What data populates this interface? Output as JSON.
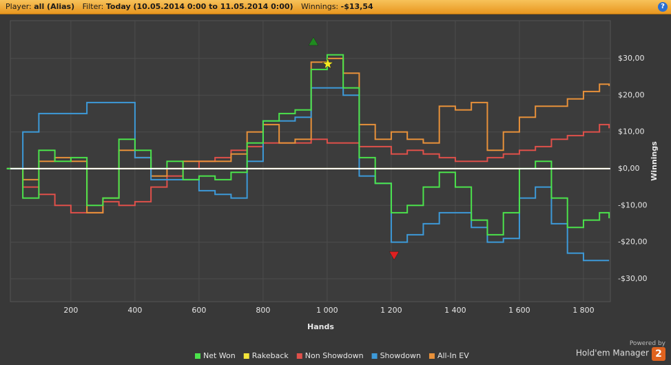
{
  "header": {
    "player_label": "Player:",
    "player": "all (Alias)",
    "filter_label": "Filter:",
    "filter": "Today (10.05.2014 0:00 to 11.05.2014 0:00)",
    "winnings_label": "Winnings:",
    "winnings": "-$13,54",
    "help": "?"
  },
  "branding": {
    "powered": "Powered by",
    "product": "Hold'em Manager",
    "version": "2"
  },
  "chart_data": {
    "type": "line",
    "step": true,
    "x_label": "Hands",
    "y_label": "Winnings",
    "x": [
      0,
      50,
      100,
      150,
      200,
      250,
      300,
      350,
      400,
      450,
      500,
      550,
      600,
      650,
      700,
      750,
      800,
      850,
      900,
      950,
      1000,
      1050,
      1100,
      1150,
      1200,
      1250,
      1300,
      1350,
      1400,
      1450,
      1500,
      1550,
      1600,
      1650,
      1700,
      1750,
      1800,
      1850,
      1880
    ],
    "series": [
      {
        "name": "Net Won",
        "color": "#4be34b",
        "values": [
          0,
          -8,
          5,
          2,
          3,
          -10,
          -8,
          8,
          5,
          0,
          2,
          -3,
          -2,
          -3,
          -1,
          7,
          13,
          15,
          16,
          27,
          31,
          22,
          3,
          -4,
          -12,
          -10,
          -5,
          -1,
          -5,
          -14,
          -18,
          -12,
          0,
          2,
          -8,
          -16,
          -14,
          -12,
          -13.5
        ]
      },
      {
        "name": "Rakeback",
        "color": "#f2e43a",
        "values": [
          0,
          0,
          0,
          0,
          0,
          0,
          0,
          0,
          0,
          0,
          0,
          0,
          0,
          0,
          0,
          0,
          0,
          0,
          0,
          0,
          0,
          0,
          0,
          0,
          0,
          0,
          0,
          0,
          0,
          0,
          0,
          0,
          0,
          0,
          0,
          0,
          0,
          0,
          0
        ]
      },
      {
        "name": "Non Showdown",
        "color": "#e0504a",
        "values": [
          0,
          -5,
          -7,
          -10,
          -12,
          -12,
          -9,
          -10,
          -9,
          -5,
          -2,
          0,
          2,
          3,
          5,
          6,
          7,
          7,
          7,
          8,
          7,
          7,
          6,
          6,
          4,
          5,
          4,
          3,
          2,
          2,
          3,
          4,
          5,
          6,
          8,
          9,
          10,
          12,
          11
        ]
      },
      {
        "name": "Showdown",
        "color": "#3d9ad9",
        "values": [
          0,
          10,
          15,
          15,
          15,
          18,
          18,
          18,
          3,
          -3,
          -3,
          -3,
          -6,
          -7,
          -8,
          2,
          13,
          13,
          14,
          22,
          22,
          20,
          -2,
          -4,
          -20,
          -18,
          -15,
          -12,
          -12,
          -16,
          -20,
          -19,
          -8,
          -5,
          -15,
          -23,
          -25,
          -25,
          -25
        ]
      },
      {
        "name": "All-In EV",
        "color": "#e8913a",
        "values": [
          0,
          -3,
          2,
          3,
          2,
          -12,
          -8,
          5,
          3,
          -2,
          0,
          2,
          2,
          2,
          4,
          10,
          12,
          7,
          8,
          29,
          30,
          26,
          12,
          8,
          10,
          8,
          7,
          17,
          16,
          18,
          5,
          10,
          14,
          17,
          17,
          19,
          21,
          23,
          22.5
        ]
      }
    ],
    "annotations": [
      {
        "x": 957,
        "y": 34.5,
        "shape": "triangle-up",
        "color": "#1f8a1f"
      },
      {
        "x": 1002,
        "y": 28.5,
        "shape": "star",
        "color": "#f5e a20"
      },
      {
        "x": 1209,
        "y": -23.5,
        "shape": "triangle-down",
        "color": "#e02020"
      }
    ],
    "xlim": [
      11,
      1884
    ],
    "ylim": [
      -36.2,
      40.3
    ],
    "xticks": [
      200,
      400,
      600,
      800,
      {
        "value": 1000,
        "label": "1 000"
      },
      {
        "value": 1200,
        "label": "1 200"
      },
      {
        "value": 1400,
        "label": "1 400"
      },
      {
        "value": 1600,
        "label": "1 600"
      },
      {
        "value": 1800,
        "label": "1 800"
      }
    ],
    "yticks": [
      {
        "value": -30,
        "label": "-$30,00"
      },
      {
        "value": -20,
        "label": "-$20,00"
      },
      {
        "value": -10,
        "label": "-$10,00"
      },
      {
        "value": 0,
        "label": "$0,00"
      },
      {
        "value": 10,
        "label": "$10,00"
      },
      {
        "value": 20,
        "label": "$20,00"
      },
      {
        "value": 30,
        "label": "$30,00"
      }
    ],
    "grid": true,
    "zero_line": true,
    "legend": "bottom"
  }
}
